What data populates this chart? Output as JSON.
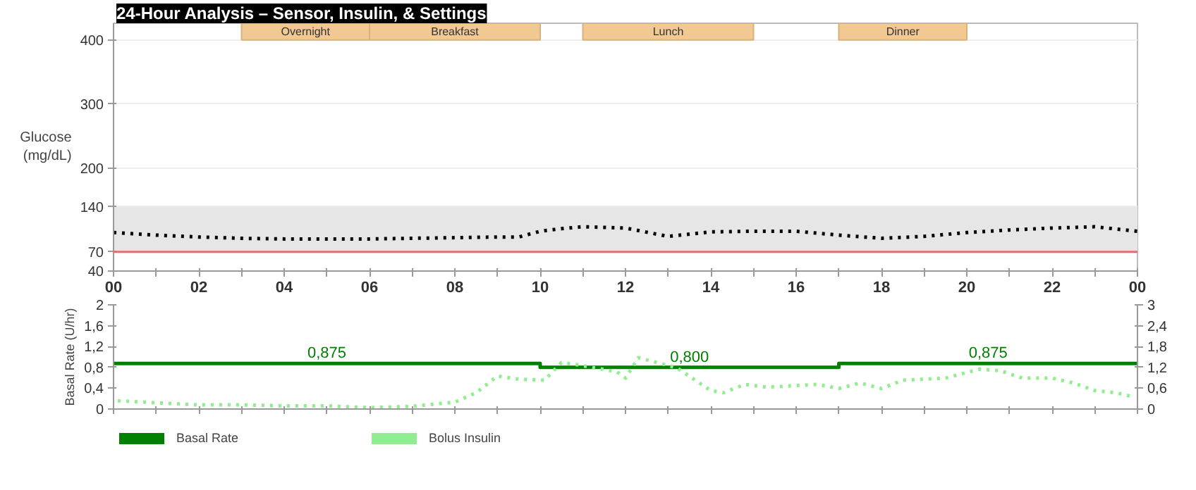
{
  "chart_data": [
    {
      "type": "line",
      "title": "24-Hour Analysis – Sensor, Insulin, & Settings",
      "ylabel": "Glucose\n(mg/dL)",
      "xlim": [
        0,
        24
      ],
      "xticks": [
        {
          "value": 0,
          "label": "00"
        },
        {
          "value": 1,
          "label": null
        },
        {
          "value": 2,
          "label": "02"
        },
        {
          "value": 3,
          "label": null
        },
        {
          "value": 4,
          "label": "04"
        },
        {
          "value": 5,
          "label": null
        },
        {
          "value": 6,
          "label": "06"
        },
        {
          "value": 7,
          "label": null
        },
        {
          "value": 8,
          "label": "08"
        },
        {
          "value": 9,
          "label": null
        },
        {
          "value": 10,
          "label": "10"
        },
        {
          "value": 11,
          "label": null
        },
        {
          "value": 12,
          "label": "12"
        },
        {
          "value": 13,
          "label": null
        },
        {
          "value": 14,
          "label": "14"
        },
        {
          "value": 15,
          "label": null
        },
        {
          "value": 16,
          "label": "16"
        },
        {
          "value": 17,
          "label": null
        },
        {
          "value": 18,
          "label": "18"
        },
        {
          "value": 19,
          "label": null
        },
        {
          "value": 20,
          "label": "20"
        },
        {
          "value": 21,
          "label": null
        },
        {
          "value": 22,
          "label": "22"
        },
        {
          "value": 23,
          "label": null
        },
        {
          "value": 24,
          "label": "00"
        }
      ],
      "ylim": [
        40,
        426
      ],
      "yticks": [
        40,
        70,
        140,
        200,
        300,
        400
      ],
      "grid": "y",
      "bands": [
        {
          "axis": "y",
          "from": 70,
          "to": 140,
          "color": "#e6e6e6"
        },
        {
          "axis": "x",
          "from": 3,
          "to": 6,
          "label": "Overnight",
          "color": "#f2c993"
        },
        {
          "axis": "x",
          "from": 6,
          "to": 10,
          "label": "Breakfast",
          "color": "#f2c993"
        },
        {
          "axis": "x",
          "from": 11,
          "to": 15,
          "label": "Lunch",
          "color": "#f2c993"
        },
        {
          "axis": "x",
          "from": 17,
          "to": 20,
          "label": "Dinner",
          "color": "#f2c993"
        }
      ],
      "ref_lines": [
        {
          "axis": "y",
          "value": 70,
          "color": "#e07070"
        }
      ],
      "series": [
        {
          "color": "#000000",
          "line_style": "dotted",
          "x": [
            0,
            1,
            2,
            3,
            4,
            5,
            6,
            7,
            8,
            9,
            9.5,
            10,
            10.5,
            11,
            12,
            13,
            14,
            15,
            16,
            17,
            18,
            19,
            20,
            21,
            22,
            23,
            24
          ],
          "values": [
            100,
            96,
            93,
            91,
            90,
            90,
            90,
            91,
            92,
            93,
            93,
            102,
            106,
            109,
            107,
            94,
            101,
            102,
            102,
            96,
            91,
            94,
            100,
            104,
            107,
            109,
            102
          ]
        }
      ]
    },
    {
      "type": "step",
      "ylabel": "Basal Rate (U/hr)",
      "tick_labels": "y",
      "xlim": [
        0,
        24
      ],
      "xticks": [
        {
          "value": 0,
          "label": null
        },
        {
          "value": 1,
          "label": null
        },
        {
          "value": 2,
          "label": null
        },
        {
          "value": 3,
          "label": null
        },
        {
          "value": 4,
          "label": null
        },
        {
          "value": 5,
          "label": null
        },
        {
          "value": 6,
          "label": null
        },
        {
          "value": 7,
          "label": null
        },
        {
          "value": 8,
          "label": null
        },
        {
          "value": 9,
          "label": null
        },
        {
          "value": 10,
          "label": null
        },
        {
          "value": 11,
          "label": null
        },
        {
          "value": 12,
          "label": null
        },
        {
          "value": 13,
          "label": null
        },
        {
          "value": 14,
          "label": null
        },
        {
          "value": 15,
          "label": null
        },
        {
          "value": 16,
          "label": null
        },
        {
          "value": 17,
          "label": null
        },
        {
          "value": 18,
          "label": null
        },
        {
          "value": 19,
          "label": null
        },
        {
          "value": 20,
          "label": null
        },
        {
          "value": 21,
          "label": null
        },
        {
          "value": 22,
          "label": null
        },
        {
          "value": 23,
          "label": null
        },
        {
          "value": 24,
          "label": null
        }
      ],
      "ylim": [
        0,
        2
      ],
      "yticks": [
        0,
        {
          "value": 0.4,
          "label": "0,4"
        },
        {
          "value": 0.8,
          "label": "0,8"
        },
        {
          "value": 1.2,
          "label": "1,2"
        },
        {
          "value": 1.6,
          "label": "1,6"
        },
        2
      ],
      "y2lim": [
        0,
        3
      ],
      "y2ticks": [
        0,
        {
          "value": 0.6,
          "label": "0,6"
        },
        {
          "value": 1.2,
          "label": "1,2"
        },
        {
          "value": 1.8,
          "label": "1,8"
        },
        {
          "value": 2.4,
          "label": "2,4"
        },
        3
      ],
      "legend": "bottom left",
      "grid": false,
      "annotations": [
        {
          "text": "0,875",
          "x": 5,
          "y": 0.875
        },
        {
          "text": "0,800",
          "x": 13.5,
          "y": 0.8
        },
        {
          "text": "0,875",
          "x": 20.5,
          "y": 0.875
        }
      ],
      "series": [
        {
          "name": "Basal Rate",
          "color": "#008000",
          "x": [
            0,
            10,
            17,
            24
          ],
          "values": [
            0.875,
            0.8,
            0.875,
            0.875
          ]
        },
        {
          "type": "line",
          "name": "Bolus Insulin",
          "color": "#90ee90",
          "line_style": "dotted",
          "axis": "y2",
          "x": [
            0.1,
            1,
            2,
            3,
            4,
            5,
            6,
            7,
            8,
            8.5,
            9,
            9.5,
            10.1,
            10.5,
            10.9,
            11.8,
            12.0,
            12.3,
            13.2,
            14.0,
            14.3,
            14.8,
            15.3,
            16.5,
            17.0,
            17.5,
            18.0,
            18.5,
            19.5,
            20.3,
            20.8,
            21.3,
            22.0,
            22.5,
            23.0,
            23.5,
            23.9
          ],
          "values": [
            0.24,
            0.18,
            0.12,
            0.12,
            0.09,
            0.09,
            0.04,
            0.08,
            0.2,
            0.47,
            0.95,
            0.86,
            0.83,
            1.34,
            1.27,
            1.07,
            0.89,
            1.48,
            1.19,
            0.53,
            0.47,
            0.71,
            0.63,
            0.71,
            0.59,
            0.75,
            0.59,
            0.83,
            0.89,
            1.15,
            1.1,
            0.89,
            0.89,
            0.75,
            0.53,
            0.47,
            0.35
          ]
        }
      ]
    }
  ]
}
